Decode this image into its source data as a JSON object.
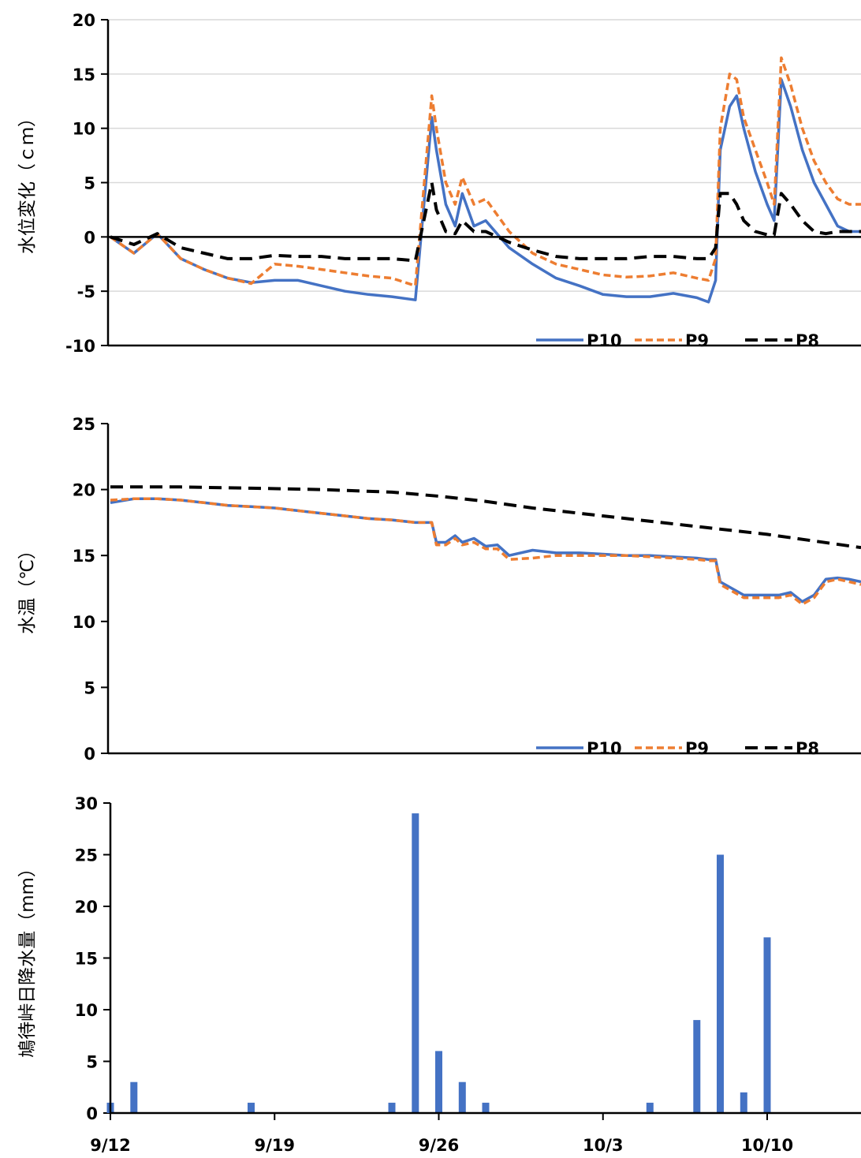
{
  "colors": {
    "P10": "#4472C4",
    "P9": "#ED7D31",
    "P8": "#000000",
    "bar": "#4472C4",
    "grid": "#d9d9d9"
  },
  "shared_x": {
    "type": "date",
    "ticks": [
      "9/12",
      "9/19",
      "9/26",
      "10/3",
      "10/10"
    ],
    "range": [
      "9/12",
      "10/14"
    ]
  },
  "chart_data": [
    {
      "type": "line",
      "ylabel": "水位変化（ｃｍ）",
      "ylim": [
        -10,
        20
      ],
      "yticks": [
        20,
        15,
        10,
        5,
        0,
        -5,
        -10
      ],
      "grid": true,
      "zero_line": true,
      "legend_position": "bottom-right",
      "series": [
        {
          "name": "P10",
          "style": "solid",
          "x": [
            "9/12",
            "9/13",
            "9/14",
            "9/15",
            "9/16",
            "9/17",
            "9/18",
            "9/19",
            "9/20",
            "9/21",
            "9/22",
            "9/23",
            "9/24",
            "9/25",
            "9/25.7",
            "9/25.9",
            "9/26.3",
            "9/26.7",
            "9/27",
            "9/27.5",
            "9/28",
            "9/29",
            "9/30",
            "10/1",
            "10/2",
            "10/3",
            "10/4",
            "10/5",
            "10/6",
            "10/7",
            "10/7.5",
            "10/7.8",
            "10/8",
            "10/8.4",
            "10/8.7",
            "10/9",
            "10/9.5",
            "10/10",
            "10/10.3",
            "10/10.6",
            "10/11",
            "10/11.5",
            "10/12",
            "10/12.5",
            "10/13",
            "10/13.5",
            "10/14"
          ],
          "y": [
            0,
            -1.5,
            0.3,
            -2,
            -3,
            -3.8,
            -4.2,
            -4,
            -4,
            -4.5,
            -5,
            -5.3,
            -5.5,
            -5.8,
            11,
            8,
            3,
            1,
            4,
            1,
            1.5,
            -1,
            -2.5,
            -3.8,
            -4.5,
            -5.3,
            -5.5,
            -5.5,
            -5.2,
            -5.6,
            -6,
            -4,
            8,
            12,
            13,
            10,
            6,
            3,
            1.5,
            14.5,
            12,
            8,
            5,
            3,
            1,
            0.5,
            0.5
          ]
        },
        {
          "name": "P9",
          "style": "dash",
          "x": [
            "9/12",
            "9/13",
            "9/14",
            "9/15",
            "9/16",
            "9/17",
            "9/18",
            "9/19",
            "9/20",
            "9/21",
            "9/22",
            "9/23",
            "9/24",
            "9/25",
            "9/25.7",
            "9/25.9",
            "9/26.3",
            "9/26.7",
            "9/27",
            "9/27.5",
            "9/28",
            "9/29",
            "9/30",
            "10/1",
            "10/2",
            "10/3",
            "10/4",
            "10/5",
            "10/6",
            "10/7",
            "10/7.5",
            "10/7.8",
            "10/8",
            "10/8.4",
            "10/8.7",
            "10/9",
            "10/9.5",
            "10/10",
            "10/10.3",
            "10/10.6",
            "10/11",
            "10/11.5",
            "10/12",
            "10/12.5",
            "10/13",
            "10/13.5",
            "10/14"
          ],
          "y": [
            0,
            -1.5,
            0.3,
            -2,
            -3,
            -3.8,
            -4.3,
            -2.5,
            -2.7,
            -3,
            -3.3,
            -3.6,
            -3.8,
            -4.5,
            13,
            10,
            5,
            3,
            5.5,
            3,
            3.5,
            0.5,
            -1.5,
            -2.5,
            -3,
            -3.5,
            -3.7,
            -3.6,
            -3.3,
            -3.8,
            -4,
            -2,
            10,
            15,
            14.5,
            11,
            8,
            5,
            3,
            16.5,
            14,
            10,
            7,
            5,
            3.5,
            3,
            3
          ]
        },
        {
          "name": "P8",
          "style": "longdash",
          "x": [
            "9/12",
            "9/13",
            "9/14",
            "9/15",
            "9/16",
            "9/17",
            "9/18",
            "9/19",
            "9/20",
            "9/21",
            "9/22",
            "9/23",
            "9/24",
            "9/25",
            "9/25.7",
            "9/25.9",
            "9/26.3",
            "9/26.7",
            "9/27",
            "9/27.5",
            "9/28",
            "9/29",
            "9/30",
            "10/1",
            "10/2",
            "10/3",
            "10/4",
            "10/5",
            "10/6",
            "10/7",
            "10/7.5",
            "10/7.8",
            "10/8",
            "10/8.4",
            "10/8.7",
            "10/9",
            "10/9.5",
            "10/10",
            "10/10.3",
            "10/10.6",
            "10/11",
            "10/11.5",
            "10/12",
            "10/12.5",
            "10/13",
            "10/13.5",
            "10/14"
          ],
          "y": [
            0,
            -0.7,
            0.3,
            -1,
            -1.5,
            -2,
            -2,
            -1.7,
            -1.8,
            -1.8,
            -2,
            -2,
            -2,
            -2.2,
            5,
            2.5,
            0.5,
            0.3,
            1.5,
            0.5,
            0.5,
            -0.5,
            -1.2,
            -1.8,
            -2,
            -2,
            -2,
            -1.8,
            -1.8,
            -2,
            -2,
            -1,
            4,
            4,
            3,
            1.5,
            0.5,
            0.2,
            0.2,
            4,
            3,
            1.5,
            0.5,
            0.3,
            0.5,
            0.5,
            0.5
          ]
        }
      ],
      "legend": [
        "P10",
        "P9",
        "P8"
      ]
    },
    {
      "type": "line",
      "ylabel": "水温（℃）",
      "ylim": [
        0,
        25
      ],
      "yticks": [
        25,
        20,
        15,
        10,
        5,
        0
      ],
      "grid": false,
      "legend_position": "bottom-right",
      "series": [
        {
          "name": "P10",
          "style": "solid",
          "x": [
            "9/12",
            "9/13",
            "9/14",
            "9/15",
            "9/16",
            "9/17",
            "9/18",
            "9/19",
            "9/20",
            "9/21",
            "9/22",
            "9/23",
            "9/24",
            "9/25",
            "9/25.7",
            "9/25.9",
            "9/26.3",
            "9/26.7",
            "9/27",
            "9/27.5",
            "9/28",
            "9/28.5",
            "9/29",
            "9/30",
            "10/1",
            "10/2",
            "10/3",
            "10/4",
            "10/5",
            "10/6",
            "10/7",
            "10/7.5",
            "10/7.8",
            "10/8",
            "10/8.5",
            "10/9",
            "10/9.5",
            "10/10",
            "10/10.5",
            "10/11",
            "10/11.5",
            "10/12",
            "10/12.5",
            "10/13",
            "10/13.5",
            "10/14"
          ],
          "y": [
            19,
            19.3,
            19.3,
            19.2,
            19,
            18.8,
            18.7,
            18.6,
            18.4,
            18.2,
            18,
            17.8,
            17.7,
            17.5,
            17.5,
            16,
            16,
            16.5,
            16,
            16.3,
            15.7,
            15.8,
            15,
            15.4,
            15.2,
            15.2,
            15.1,
            15,
            15,
            14.9,
            14.8,
            14.7,
            14.7,
            13,
            12.5,
            12,
            12,
            12,
            12,
            12.2,
            11.5,
            12,
            13.2,
            13.3,
            13.2,
            13
          ]
        },
        {
          "name": "P9",
          "style": "dash",
          "x": [
            "9/12",
            "9/13",
            "9/14",
            "9/15",
            "9/16",
            "9/17",
            "9/18",
            "9/19",
            "9/20",
            "9/21",
            "9/22",
            "9/23",
            "9/24",
            "9/25",
            "9/25.7",
            "9/25.9",
            "9/26.3",
            "9/26.7",
            "9/27",
            "9/27.5",
            "9/28",
            "9/28.5",
            "9/29",
            "9/30",
            "10/1",
            "10/2",
            "10/3",
            "10/4",
            "10/5",
            "10/6",
            "10/7",
            "10/7.5",
            "10/7.8",
            "10/8",
            "10/8.5",
            "10/9",
            "10/9.5",
            "10/10",
            "10/10.5",
            "10/11",
            "10/11.5",
            "10/12",
            "10/12.5",
            "10/13",
            "10/13.5",
            "10/14"
          ],
          "y": [
            19.2,
            19.3,
            19.3,
            19.2,
            19,
            18.8,
            18.7,
            18.6,
            18.4,
            18.2,
            18,
            17.8,
            17.7,
            17.5,
            17.5,
            15.8,
            15.8,
            16.3,
            15.8,
            16,
            15.5,
            15.5,
            14.7,
            14.8,
            15,
            15,
            15,
            15,
            14.9,
            14.8,
            14.7,
            14.6,
            14.6,
            12.8,
            12.3,
            11.8,
            11.8,
            11.8,
            11.8,
            12,
            11.3,
            11.8,
            13,
            13.2,
            13,
            12.8
          ]
        },
        {
          "name": "P8",
          "style": "longdash",
          "x": [
            "9/12",
            "9/15",
            "9/18",
            "9/21",
            "9/24",
            "9/26",
            "9/28",
            "9/30",
            "10/2",
            "10/4",
            "10/6",
            "10/8",
            "10/10",
            "10/12",
            "10/14"
          ],
          "y": [
            20.2,
            20.2,
            20.1,
            20,
            19.8,
            19.5,
            19.1,
            18.6,
            18.2,
            17.8,
            17.4,
            17,
            16.6,
            16.1,
            15.6
          ]
        }
      ],
      "legend": [
        "P10",
        "P9",
        "P8"
      ]
    },
    {
      "type": "bar",
      "ylabel": "鳩待峠日降水量（mm）",
      "ylim": [
        0,
        30
      ],
      "yticks": [
        30,
        25,
        20,
        15,
        10,
        5,
        0
      ],
      "grid": false,
      "x": [
        "9/12",
        "9/13",
        "9/18",
        "9/24",
        "9/25",
        "9/26",
        "9/27",
        "9/28",
        "10/5",
        "10/7",
        "10/8",
        "10/9",
        "10/10"
      ],
      "values": [
        1,
        3,
        1,
        1,
        29,
        6,
        3,
        1,
        1,
        9,
        25,
        2,
        17
      ]
    }
  ]
}
